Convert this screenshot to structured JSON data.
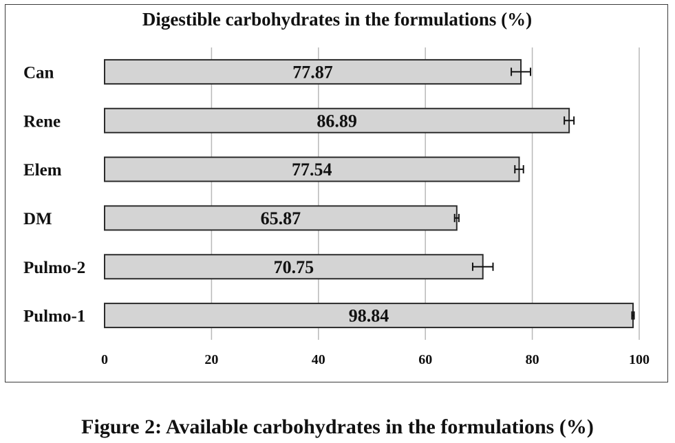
{
  "chart_data": {
    "type": "bar",
    "orientation": "horizontal",
    "title": "Digestible carbohydrates in the formulations (%)",
    "categories": [
      "Can",
      "Rene",
      "Elem",
      "DM",
      "Pulmo-2",
      "Pulmo-1"
    ],
    "values": [
      77.87,
      86.89,
      77.54,
      65.87,
      70.75,
      98.84
    ],
    "error": [
      1.8,
      0.9,
      0.8,
      0.4,
      1.9,
      0.2
    ],
    "data_labels": [
      "77.87",
      "86.89",
      "77.54",
      "65.87",
      "70.75",
      "98.84"
    ],
    "xlim": [
      0,
      100
    ],
    "xticks": [
      0,
      20,
      40,
      60,
      80,
      100
    ],
    "xtick_labels": [
      "0",
      "20",
      "40",
      "60",
      "80",
      "100"
    ],
    "grid": "vertical",
    "legend": "none",
    "bar_color": "#d4d4d4",
    "bar_edge_color": "#2b2b2b",
    "grid_color": "#b8b8b8"
  },
  "caption": "Figure 2: Available carbohydrates in the formulations (%)"
}
